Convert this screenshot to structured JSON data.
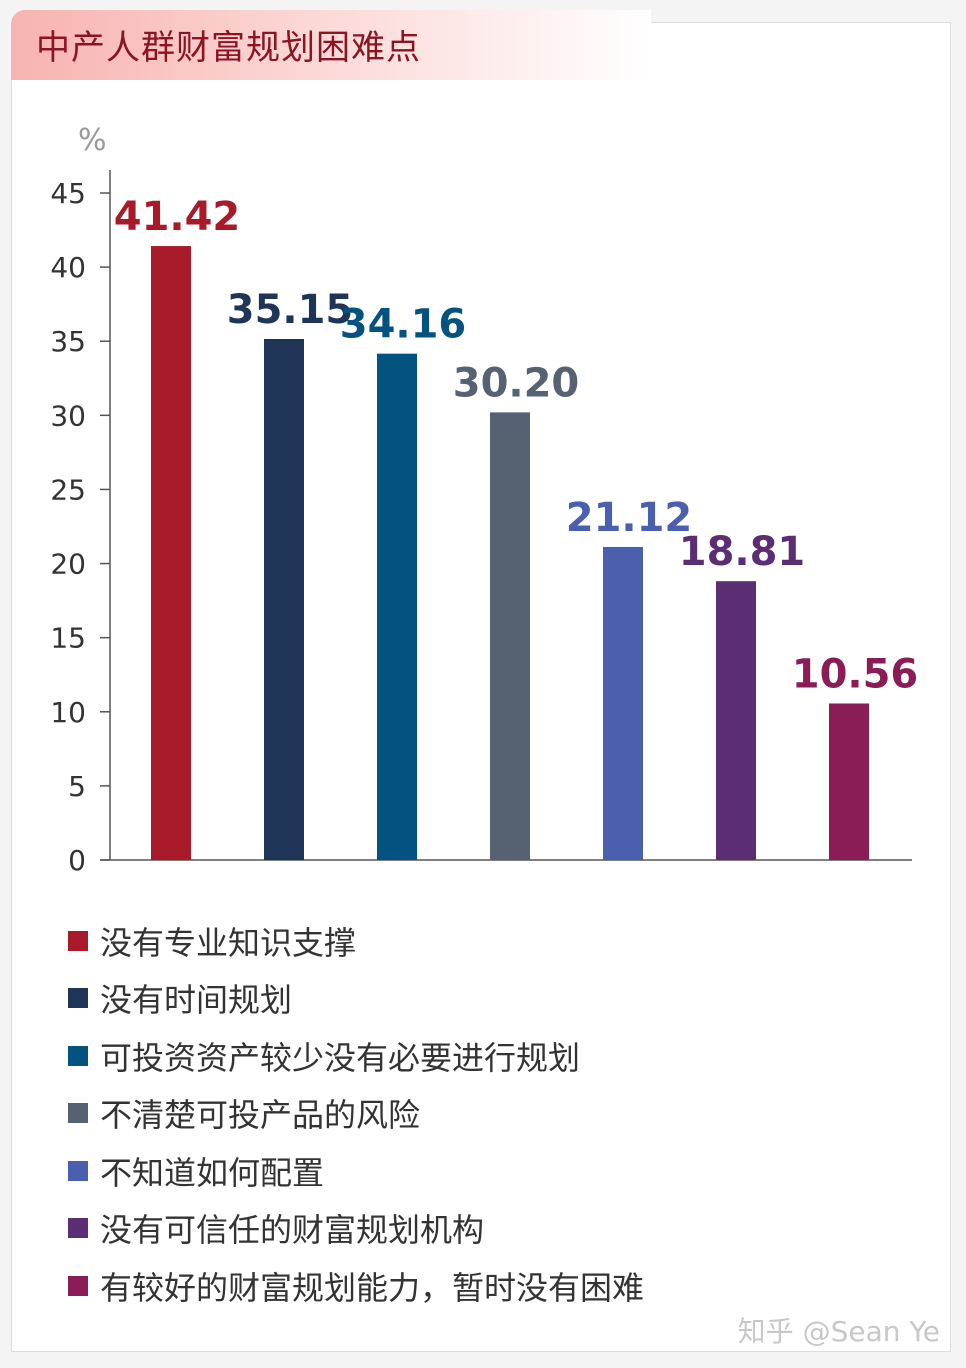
{
  "title": "中产人群财富规划困难点",
  "watermark": "知乎 @Sean Ye",
  "chart_data": {
    "type": "bar",
    "title": "中产人群财富规划困难点",
    "ylabel": "%",
    "xlabel": "",
    "ylim": [
      0,
      45
    ],
    "yticks": [
      0,
      5,
      10,
      15,
      20,
      25,
      30,
      35,
      40,
      45
    ],
    "grid": false,
    "legend_position": "bottom",
    "categories": [
      "没有专业知识支撑",
      "没有时间规划",
      "可投资资产较少没有必要进行规划",
      "不清楚可投产品的风险",
      "不知道如何配置",
      "没有可信任的财富规划机构",
      "有较好的财富规划能力，暂时没有困难"
    ],
    "values": [
      41.42,
      35.15,
      34.16,
      30.2,
      21.12,
      18.81,
      10.56
    ],
    "value_labels": [
      "41.42",
      "35.15",
      "34.16",
      "30.20",
      "21.12",
      "18.81",
      "10.56"
    ],
    "colors": [
      "#a8192a",
      "#1e3557",
      "#04527f",
      "#566272",
      "#4a5fae",
      "#5b2e73",
      "#8a1d56"
    ]
  }
}
